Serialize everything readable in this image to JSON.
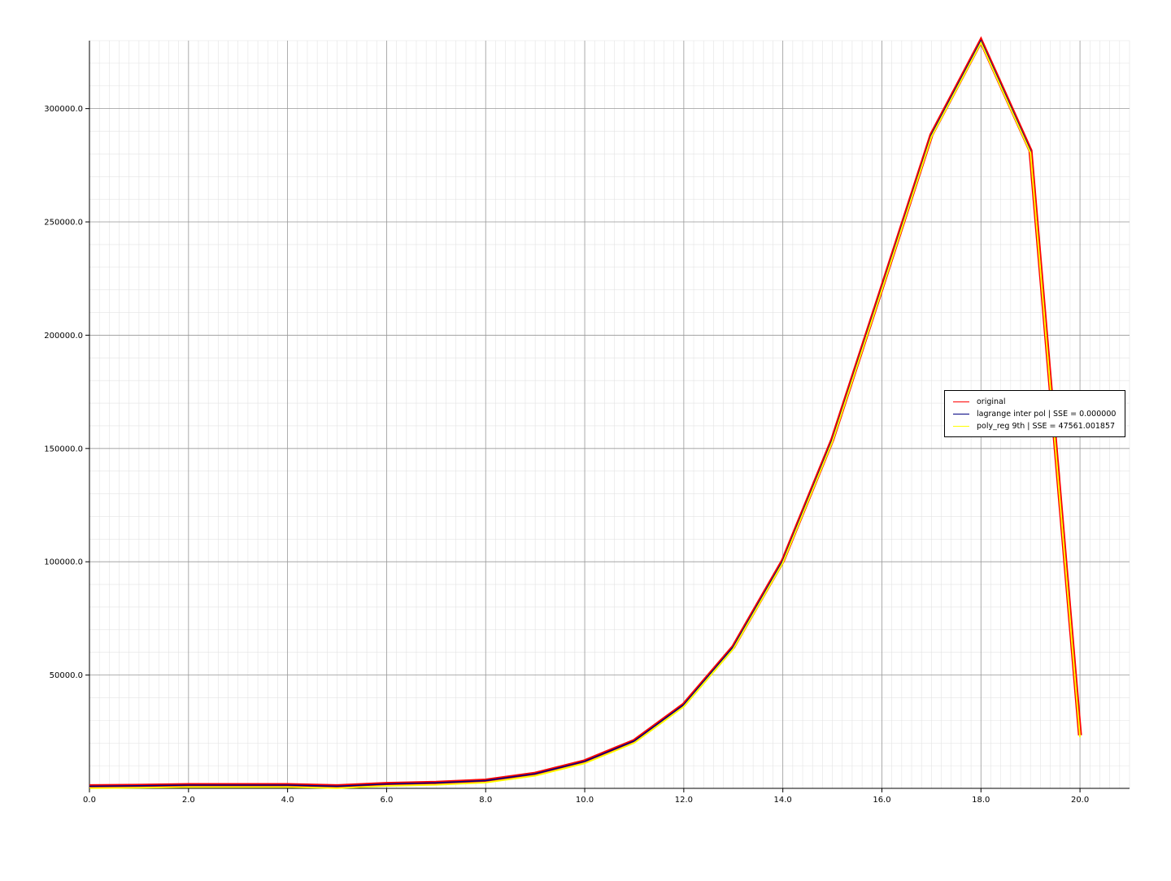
{
  "chart_data": {
    "type": "line",
    "title": "",
    "xlabel": "",
    "ylabel": "",
    "xlim": [
      0,
      21
    ],
    "ylim": [
      0,
      330000
    ],
    "x_ticks": [
      0,
      2,
      4,
      6,
      8,
      10,
      12,
      14,
      16,
      18,
      20
    ],
    "x_tick_labels": [
      "0.0",
      "2.0",
      "4.0",
      "6.0",
      "8.0",
      "10.0",
      "12.0",
      "14.0",
      "16.0",
      "18.0",
      "20.0"
    ],
    "y_ticks": [
      50000,
      100000,
      150000,
      200000,
      250000,
      300000
    ],
    "y_tick_labels": [
      "50000.0",
      "100000.0",
      "150000.0",
      "200000.0",
      "250000.0",
      "300000.0"
    ],
    "grid": {
      "major": true,
      "minor": true
    },
    "legend_position": "center-right",
    "x": [
      0,
      1,
      2,
      3,
      4,
      5,
      6,
      7,
      8,
      9,
      10,
      11,
      12,
      13,
      14,
      15,
      16,
      17,
      18,
      19,
      20
    ],
    "series": [
      {
        "name": "original",
        "color": "#ff0000",
        "values": [
          500,
          700,
          1000,
          1000,
          1000,
          500,
          1500,
          2000,
          3000,
          6000,
          11500,
          20500,
          36500,
          62000,
          100000,
          153500,
          220500,
          288000,
          329500,
          281000,
          23000
        ]
      },
      {
        "name": "lagrange inter pol | SSE = 0.000000",
        "color": "#000080",
        "values": [
          500,
          700,
          1000,
          1000,
          1000,
          500,
          1500,
          2000,
          3000,
          6000,
          11500,
          20500,
          36500,
          62000,
          100000,
          153500,
          220500,
          288000,
          329500,
          281000,
          23000
        ]
      },
      {
        "name": "poly_reg 9th | SSE = 47561.001857",
        "color": "#ffff00",
        "values": [
          500,
          700,
          1000,
          1000,
          1000,
          500,
          1500,
          2000,
          3000,
          6000,
          11500,
          20500,
          36500,
          62000,
          100000,
          153500,
          220500,
          288000,
          329500,
          281000,
          23000
        ]
      }
    ]
  }
}
